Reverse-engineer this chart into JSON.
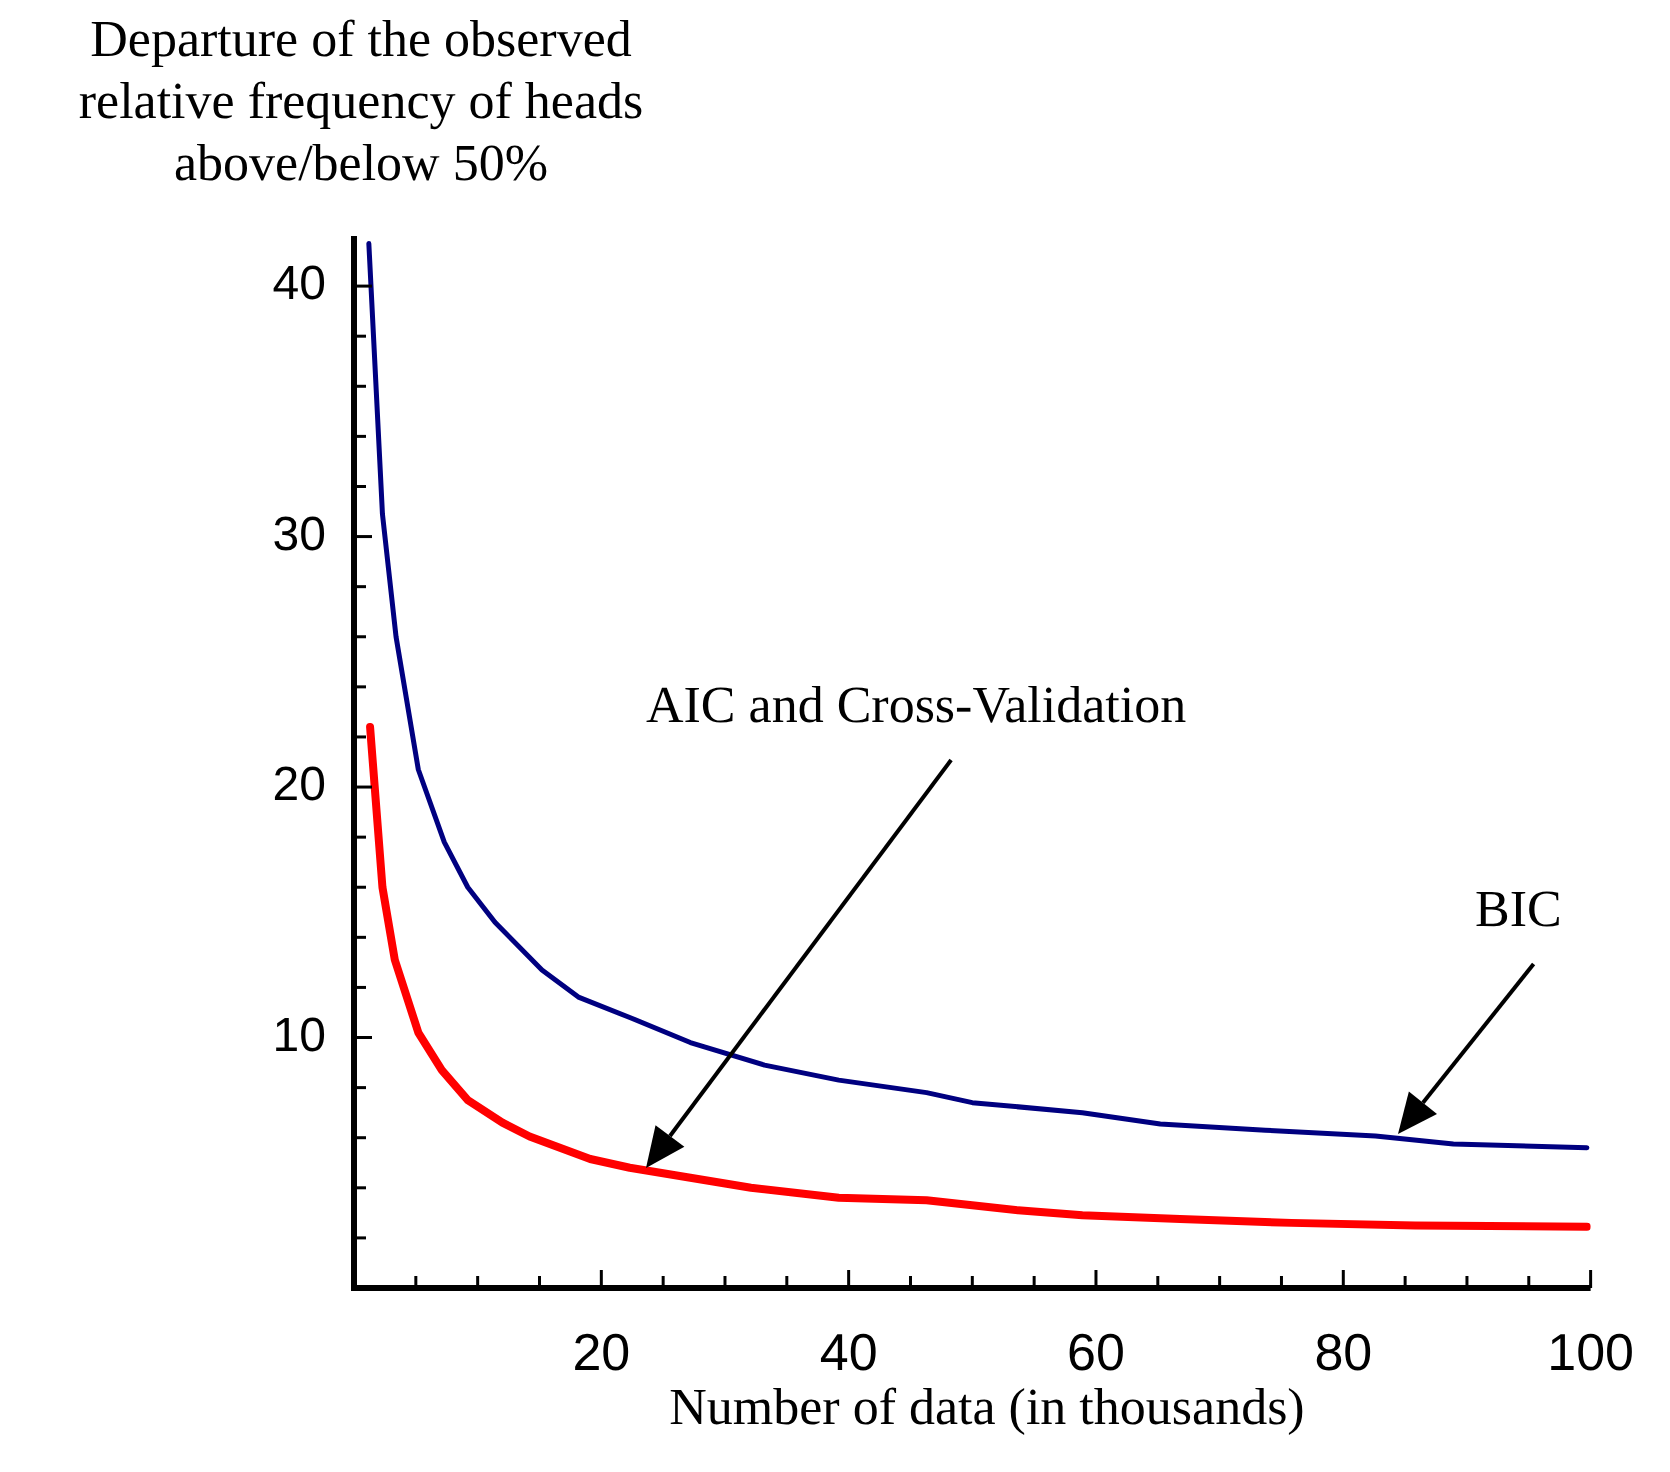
{
  "chart_data": {
    "type": "line",
    "ylabel": "Departure of the observed relative frequency of heads above/below 50%",
    "xlabel": "Number of data (in thousands)",
    "xlim": [
      0,
      100
    ],
    "xticks": [
      {
        "value": 5,
        "label": null
      },
      {
        "value": 10,
        "label": null
      },
      {
        "value": 15,
        "label": null
      },
      20,
      {
        "value": 25,
        "label": null
      },
      {
        "value": 30,
        "label": null
      },
      {
        "value": 35,
        "label": null
      },
      40,
      {
        "value": 45,
        "label": null
      },
      {
        "value": 50,
        "label": null
      },
      {
        "value": 55,
        "label": null
      },
      60,
      {
        "value": 65,
        "label": null
      },
      {
        "value": 70,
        "label": null
      },
      {
        "value": 75,
        "label": null
      },
      80,
      {
        "value": 85,
        "label": null
      },
      {
        "value": 90,
        "label": null
      },
      {
        "value": 95,
        "label": null
      },
      100
    ],
    "ylim": [
      0,
      42
    ],
    "yticks": [
      {
        "value": 2,
        "label": null
      },
      {
        "value": 4,
        "label": null
      },
      {
        "value": 6,
        "label": null
      },
      {
        "value": 8,
        "label": null
      },
      10,
      {
        "value": 12,
        "label": null
      },
      {
        "value": 14,
        "label": null
      },
      {
        "value": 16,
        "label": null
      },
      {
        "value": 18,
        "label": null
      },
      20,
      {
        "value": 22,
        "label": null
      },
      {
        "value": 24,
        "label": null
      },
      {
        "value": 26,
        "label": null
      },
      {
        "value": 28,
        "label": null
      },
      30,
      {
        "value": 32,
        "label": null
      },
      {
        "value": 34,
        "label": null
      },
      {
        "value": 36,
        "label": null
      },
      {
        "value": 38,
        "label": null
      },
      40
    ],
    "grid": false,
    "legend": false,
    "marker": "none",
    "line_style": "solid",
    "series": [
      {
        "color": "#000080",
        "x": [
          1.2,
          2.3,
          3.4,
          5.2,
          7.3,
          9.2,
          11.4,
          15.2,
          18.2,
          22.3,
          27.2,
          33.2,
          39.2,
          46.3,
          50.0,
          58.9,
          65.2,
          73.7,
          82.6,
          88.9,
          99.7
        ],
        "values": [
          41.7,
          30.9,
          26.0,
          20.7,
          17.8,
          16.0,
          14.6,
          12.7,
          11.6,
          10.8,
          9.8,
          8.9,
          8.3,
          7.8,
          7.4,
          7.0,
          6.55,
          6.3,
          6.07,
          5.75,
          5.6
        ]
      },
      {
        "color": "#ff0000",
        "x": [
          1.3,
          2.3,
          3.3,
          5.2,
          7.1,
          9.2,
          12.0,
          14.2,
          19.1,
          22.3,
          27.2,
          32.1,
          39.2,
          46.3,
          53.7,
          58.9,
          66.8,
          75.8,
          85.8,
          99.7
        ],
        "values": [
          22.4,
          16.0,
          13.1,
          10.2,
          8.7,
          7.5,
          6.6,
          6.05,
          5.15,
          4.8,
          4.4,
          4.0,
          3.6,
          3.5,
          3.1,
          2.9,
          2.75,
          2.6,
          2.5,
          2.45
        ]
      }
    ],
    "annotations": [
      "AIC and Cross-Validation",
      "BIC"
    ]
  }
}
